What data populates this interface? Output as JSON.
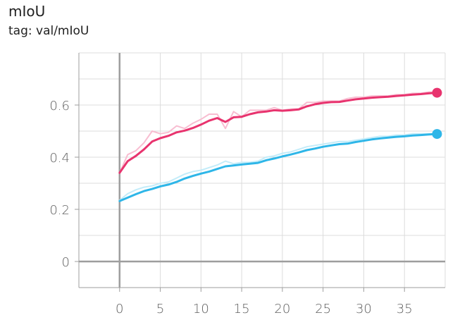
{
  "title": "mIoU",
  "tag": "tag: val/mIoU",
  "chart_data": {
    "type": "line",
    "title": "mIoU",
    "xlabel": "",
    "ylabel": "",
    "xlim": [
      -5,
      40
    ],
    "ylim": [
      -0.1,
      0.8
    ],
    "xticks": [
      0,
      5,
      10,
      15,
      20,
      25,
      30,
      35
    ],
    "yticks": [
      0,
      0.2,
      0.4,
      0.6
    ],
    "xtick_labels": [
      "0",
      "5",
      "10",
      "15",
      "20",
      "25",
      "30",
      "35"
    ],
    "ytick_labels": [
      "0",
      "0.2",
      "0.4",
      "0.6"
    ],
    "grid": true,
    "series": [
      {
        "color": "#e8336e",
        "raw_color": "#f8bdd1",
        "x": [
          0,
          1,
          2,
          3,
          4,
          5,
          6,
          7,
          8,
          9,
          10,
          11,
          12,
          13,
          14,
          15,
          16,
          17,
          18,
          19,
          20,
          21,
          22,
          23,
          24,
          25,
          26,
          27,
          28,
          29,
          30,
          31,
          32,
          33,
          34,
          35,
          36,
          37,
          38,
          39
        ],
        "raw": [
          0.34,
          0.41,
          0.425,
          0.455,
          0.5,
          0.49,
          0.495,
          0.52,
          0.51,
          0.53,
          0.545,
          0.565,
          0.565,
          0.51,
          0.575,
          0.555,
          0.58,
          0.58,
          0.58,
          0.59,
          0.58,
          0.585,
          0.585,
          0.61,
          0.61,
          0.615,
          0.615,
          0.615,
          0.625,
          0.63,
          0.63,
          0.635,
          0.635,
          0.635,
          0.64,
          0.64,
          0.645,
          0.645,
          0.65,
          0.648
        ],
        "smoothed": [
          0.34,
          0.385,
          0.405,
          0.43,
          0.46,
          0.473,
          0.482,
          0.495,
          0.502,
          0.512,
          0.525,
          0.54,
          0.55,
          0.535,
          0.553,
          0.555,
          0.565,
          0.572,
          0.575,
          0.58,
          0.578,
          0.58,
          0.583,
          0.595,
          0.603,
          0.608,
          0.611,
          0.612,
          0.617,
          0.622,
          0.625,
          0.628,
          0.63,
          0.632,
          0.635,
          0.637,
          0.64,
          0.642,
          0.645,
          0.647
        ]
      },
      {
        "color": "#2eb6e8",
        "raw_color": "#c3ecf9",
        "x": [
          0,
          1,
          2,
          3,
          4,
          5,
          6,
          7,
          8,
          9,
          10,
          11,
          12,
          13,
          14,
          15,
          16,
          17,
          18,
          19,
          20,
          21,
          22,
          23,
          24,
          25,
          26,
          27,
          28,
          29,
          30,
          31,
          32,
          33,
          34,
          35,
          36,
          37,
          38,
          39
        ],
        "raw": [
          0.235,
          0.26,
          0.275,
          0.285,
          0.29,
          0.3,
          0.305,
          0.32,
          0.335,
          0.345,
          0.35,
          0.36,
          0.37,
          0.385,
          0.375,
          0.38,
          0.38,
          0.385,
          0.4,
          0.405,
          0.415,
          0.42,
          0.43,
          0.44,
          0.445,
          0.45,
          0.455,
          0.46,
          0.46,
          0.465,
          0.47,
          0.475,
          0.48,
          0.48,
          0.485,
          0.485,
          0.49,
          0.49,
          0.49,
          0.49
        ],
        "smoothed": [
          0.232,
          0.245,
          0.258,
          0.27,
          0.278,
          0.288,
          0.295,
          0.305,
          0.318,
          0.328,
          0.337,
          0.345,
          0.355,
          0.365,
          0.368,
          0.372,
          0.375,
          0.378,
          0.388,
          0.395,
          0.403,
          0.41,
          0.418,
          0.427,
          0.433,
          0.44,
          0.445,
          0.45,
          0.452,
          0.458,
          0.463,
          0.468,
          0.472,
          0.475,
          0.478,
          0.48,
          0.483,
          0.485,
          0.487,
          0.489
        ]
      }
    ]
  }
}
